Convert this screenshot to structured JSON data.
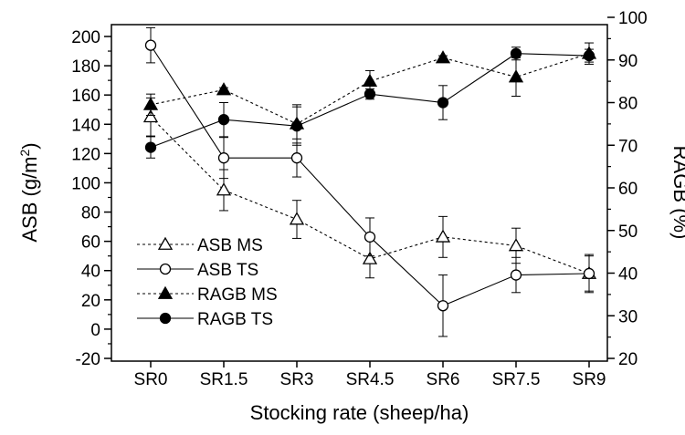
{
  "chart_data": {
    "type": "line",
    "title": "",
    "xlabel": "Stocking rate (sheep/ha)",
    "ylabel_left": "ASB (g/m",
    "ylabel_left_sup": "2",
    "ylabel_left_end": ")",
    "ylabel_right": "RAGB (%)",
    "categories": [
      "SR0",
      "SR1.5",
      "SR3",
      "SR4.5",
      "SR6",
      "SR7.5",
      "SR9"
    ],
    "ylim_left": [
      -20,
      210
    ],
    "yticks_left": [
      "-20",
      "0",
      "20",
      "40",
      "60",
      "80",
      "100",
      "120",
      "140",
      "160",
      "180",
      "200"
    ],
    "ylim_right": [
      20,
      100
    ],
    "yticks_right": [
      "20",
      "30",
      "40",
      "50",
      "60",
      "70",
      "80",
      "90",
      "100"
    ],
    "grid": false,
    "legend_position": "bottom-left",
    "series": [
      {
        "name": "ASB MS",
        "axis": "left",
        "marker": "open-triangle",
        "line": "dashed",
        "values": [
          145,
          95,
          75,
          48,
          63,
          57,
          38
        ],
        "errors": [
          13,
          14,
          13,
          13,
          14,
          12,
          12
        ]
      },
      {
        "name": "ASB TS",
        "axis": "left",
        "marker": "open-circle",
        "line": "solid",
        "values": [
          194,
          117,
          117,
          63,
          16,
          37,
          38
        ],
        "errors": [
          12,
          14,
          13,
          13,
          21,
          12,
          13
        ]
      },
      {
        "name": "RAGB MS",
        "axis": "right",
        "marker": "filled-triangle",
        "line": "dashed",
        "values": [
          79.5,
          83,
          75,
          85,
          90.5,
          86,
          91.5
        ],
        "errors": [
          2.5,
          0.5,
          4.5,
          2.5,
          0.5,
          4.5,
          2.5
        ]
      },
      {
        "name": "RAGB TS",
        "axis": "right",
        "marker": "filled-circle",
        "line": "solid",
        "values": [
          69.5,
          76,
          74.5,
          82,
          80,
          91.5,
          91
        ],
        "errors": [
          2.5,
          4,
          4.5,
          1.2,
          4,
          1.5,
          1.5
        ]
      }
    ]
  }
}
